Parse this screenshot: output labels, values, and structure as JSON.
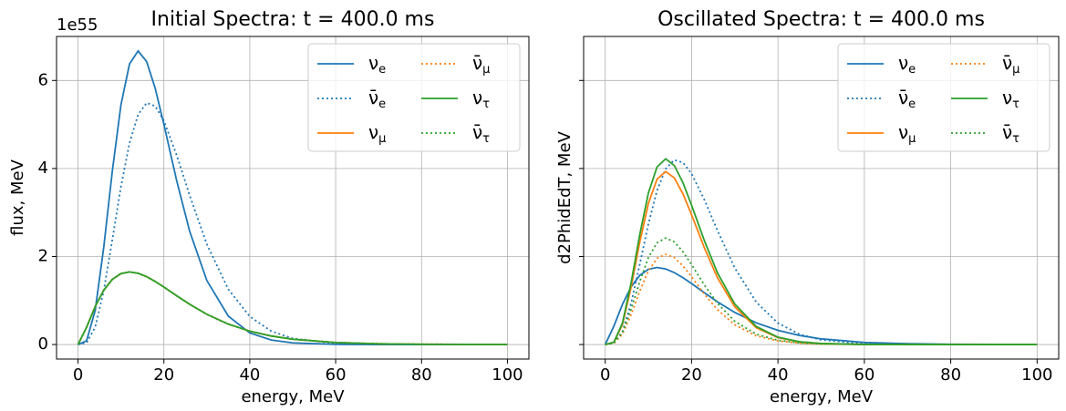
{
  "chart_data": [
    {
      "type": "line",
      "title": "Initial Spectra: t = 400.0 ms",
      "xlabel": "energy, MeV",
      "ylabel": "flux, MeV",
      "y_offset_label": "1e55",
      "x": [
        0,
        2,
        4,
        6,
        8,
        10,
        12,
        14,
        16,
        18,
        20,
        23,
        26,
        30,
        35,
        40,
        45,
        50,
        60,
        70,
        80,
        100
      ],
      "series": [
        {
          "name": "νe",
          "color": "#1f77b4",
          "dash": "solid",
          "values": [
            0,
            0.086,
            0.774,
            2.214,
            3.947,
            5.445,
            6.376,
            6.67,
            6.427,
            5.813,
            5.003,
            3.714,
            2.574,
            1.455,
            0.646,
            0.264,
            0.102,
            0.037,
            0.004,
            0,
            0,
            0
          ]
        },
        {
          "name": "ν̄e",
          "color": "#1f77b4",
          "dash": "dotted",
          "values": [
            0,
            0.04,
            0.393,
            1.226,
            2.386,
            3.588,
            4.581,
            5.226,
            5.491,
            5.415,
            5.084,
            4.296,
            3.391,
            2.278,
            1.256,
            0.637,
            0.304,
            0.138,
            0.025,
            0.004,
            0.001,
            0
          ]
        },
        {
          "name": "νμ",
          "color": "#ff7f0e",
          "dash": "solid",
          "values": [
            0,
            0.392,
            0.863,
            1.235,
            1.481,
            1.612,
            1.65,
            1.619,
            1.541,
            1.432,
            1.306,
            1.107,
            0.915,
            0.687,
            0.464,
            0.303,
            0.194,
            0.121,
            0.046,
            0.017,
            0.006,
            0.001
          ]
        },
        {
          "name": "ν̄μ",
          "color": "#ff7f0e",
          "dash": "dotted",
          "values": [
            0,
            0.392,
            0.863,
            1.235,
            1.481,
            1.612,
            1.65,
            1.619,
            1.541,
            1.432,
            1.306,
            1.107,
            0.915,
            0.687,
            0.464,
            0.303,
            0.194,
            0.121,
            0.046,
            0.017,
            0.006,
            0.001
          ]
        },
        {
          "name": "ντ",
          "color": "#2ca02c",
          "dash": "solid",
          "values": [
            0,
            0.392,
            0.863,
            1.235,
            1.481,
            1.612,
            1.65,
            1.619,
            1.541,
            1.432,
            1.306,
            1.107,
            0.915,
            0.687,
            0.464,
            0.303,
            0.194,
            0.121,
            0.046,
            0.017,
            0.006,
            0.001
          ]
        },
        {
          "name": "ν̄τ",
          "color": "#2ca02c",
          "dash": "dotted",
          "values": [
            0,
            0.392,
            0.863,
            1.235,
            1.481,
            1.612,
            1.65,
            1.619,
            1.541,
            1.432,
            1.306,
            1.107,
            0.915,
            0.687,
            0.464,
            0.303,
            0.194,
            0.121,
            0.046,
            0.017,
            0.006,
            0.001
          ]
        }
      ],
      "xlim": [
        -5,
        105
      ],
      "ylim": [
        -0.33,
        7.0
      ],
      "xticks": [
        0,
        20,
        40,
        60,
        80,
        100
      ],
      "yticks": [
        0,
        2,
        4,
        6
      ],
      "grid": true,
      "legend": "upper right",
      "legend_columns": 2,
      "show_ytick_labels": true
    },
    {
      "type": "line",
      "title": "Oscillated Spectra: t = 400.0 ms",
      "xlabel": "energy, MeV",
      "ylabel": "d2PhidEdT, MeV",
      "x": [
        0,
        2,
        4,
        6,
        8,
        10,
        12,
        14,
        16,
        18,
        20,
        23,
        26,
        30,
        35,
        40,
        45,
        50,
        60,
        70,
        80,
        100
      ],
      "series": [
        {
          "name": "νe",
          "color": "#1f77b4",
          "dash": "solid",
          "values": [
            0,
            0.416,
            0.915,
            1.31,
            1.571,
            1.709,
            1.75,
            1.718,
            1.634,
            1.519,
            1.385,
            1.174,
            0.97,
            0.729,
            0.492,
            0.322,
            0.205,
            0.129,
            0.048,
            0.018,
            0.006,
            0.001
          ]
        },
        {
          "name": "ν̄e",
          "color": "#1f77b4",
          "dash": "dotted",
          "values": [
            0,
            0.03,
            0.3,
            0.936,
            1.822,
            2.74,
            3.498,
            3.991,
            4.193,
            4.135,
            3.882,
            3.281,
            2.589,
            1.739,
            0.959,
            0.487,
            0.232,
            0.105,
            0.019,
            0.003,
            0,
            0
          ]
        },
        {
          "name": "νμ",
          "color": "#ff7f0e",
          "dash": "solid",
          "values": [
            0,
            0.05,
            0.456,
            1.304,
            2.326,
            3.208,
            3.757,
            3.93,
            3.787,
            3.425,
            2.948,
            2.188,
            1.517,
            0.857,
            0.38,
            0.156,
            0.06,
            0.022,
            0.003,
            0,
            0,
            0
          ]
        },
        {
          "name": "ν̄μ",
          "color": "#ff7f0e",
          "dash": "dotted",
          "values": [
            0,
            0.026,
            0.238,
            0.68,
            1.213,
            1.673,
            1.96,
            2.05,
            1.975,
            1.787,
            1.538,
            1.141,
            0.791,
            0.447,
            0.198,
            0.081,
            0.031,
            0.011,
            0.001,
            0,
            0,
            0
          ]
        },
        {
          "name": "ντ",
          "color": "#2ca02c",
          "dash": "solid",
          "values": [
            0,
            0.054,
            0.49,
            1.401,
            2.497,
            3.445,
            4.034,
            4.22,
            4.067,
            3.678,
            3.165,
            2.35,
            1.628,
            0.92,
            0.408,
            0.167,
            0.064,
            0.023,
            0.003,
            0,
            0,
            0
          ]
        },
        {
          "name": "ν̄τ",
          "color": "#2ca02c",
          "dash": "dotted",
          "values": [
            0,
            0.031,
            0.281,
            0.803,
            1.432,
            1.975,
            2.313,
            2.42,
            2.332,
            2.109,
            1.815,
            1.347,
            0.934,
            0.528,
            0.234,
            0.096,
            0.037,
            0.013,
            0.002,
            0,
            0,
            0
          ]
        }
      ],
      "xlim": [
        -5,
        105
      ],
      "ylim": [
        -0.33,
        7.0
      ],
      "xticks": [
        0,
        20,
        40,
        60,
        80,
        100
      ],
      "yticks": [
        0,
        2,
        4,
        6
      ],
      "grid": true,
      "legend": "upper right",
      "legend_columns": 2,
      "show_ytick_labels": false
    }
  ]
}
